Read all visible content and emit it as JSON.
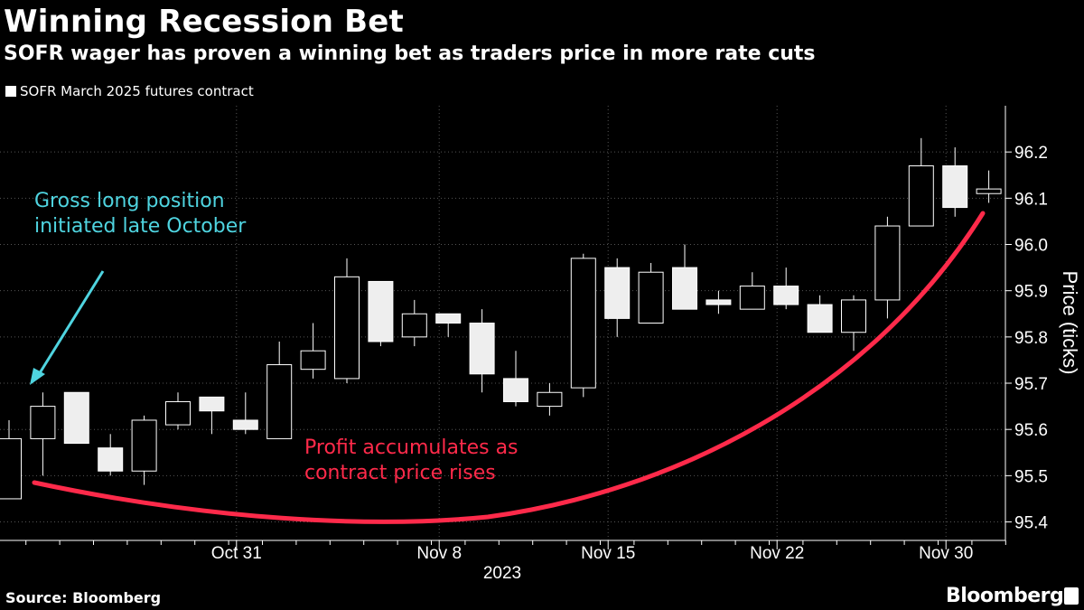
{
  "title": "Winning Recession Bet",
  "subtitle": "SOFR wager has proven a winning bet as traders price in more rate cuts",
  "source": "Source: Bloomberg",
  "brand": "Bloomberg",
  "colors": {
    "background": "#000000",
    "candle": "#ffffff",
    "annotation_start": "#4fd4e0",
    "annotation_profit": "#ff2a4a",
    "grid": "#555555"
  },
  "chart_data": {
    "type": "candlestick",
    "series": [
      {
        "name": "SOFR March 2025 futures contract"
      }
    ],
    "ylabel": "Price (ticks)",
    "xlabel": "2023",
    "ylim": [
      95.36,
      96.3
    ],
    "yticks": [
      95.4,
      95.5,
      95.6,
      95.7,
      95.8,
      95.9,
      96.0,
      96.1,
      96.2
    ],
    "ytick_labels": [
      "95.4",
      "95.5",
      "95.6",
      "95.7",
      "95.8",
      "95.9",
      "96.0",
      "96.1",
      "96.2"
    ],
    "xticks": [
      "Oct 31",
      "Nov 8",
      "Nov 15",
      "Nov 22",
      "Nov 30"
    ],
    "xtick_positions": [
      7,
      13,
      18,
      23,
      28
    ],
    "annotations": [
      {
        "text_lines": [
          "Gross long position",
          "initiated late October"
        ],
        "color": "#4fd4e0"
      },
      {
        "text_lines": [
          "Profit accumulates as",
          "contract price rises"
        ],
        "color": "#ff2a4a"
      }
    ],
    "candles": [
      {
        "open": 95.45,
        "high": 95.62,
        "low": 95.45,
        "close": 95.58
      },
      {
        "open": 95.58,
        "high": 95.68,
        "low": 95.5,
        "close": 95.65
      },
      {
        "open": 95.68,
        "high": 95.68,
        "low": 95.57,
        "close": 95.57
      },
      {
        "open": 95.56,
        "high": 95.59,
        "low": 95.5,
        "close": 95.51
      },
      {
        "open": 95.51,
        "high": 95.63,
        "low": 95.48,
        "close": 95.62
      },
      {
        "open": 95.61,
        "high": 95.68,
        "low": 95.6,
        "close": 95.66
      },
      {
        "open": 95.67,
        "high": 95.67,
        "low": 95.59,
        "close": 95.64
      },
      {
        "open": 95.62,
        "high": 95.68,
        "low": 95.59,
        "close": 95.6
      },
      {
        "open": 95.58,
        "high": 95.79,
        "low": 95.58,
        "close": 95.74
      },
      {
        "open": 95.73,
        "high": 95.83,
        "low": 95.71,
        "close": 95.77
      },
      {
        "open": 95.71,
        "high": 95.97,
        "low": 95.7,
        "close": 95.93
      },
      {
        "open": 95.92,
        "high": 95.92,
        "low": 95.78,
        "close": 95.79
      },
      {
        "open": 95.8,
        "high": 95.88,
        "low": 95.78,
        "close": 95.85
      },
      {
        "open": 95.85,
        "high": 95.85,
        "low": 95.8,
        "close": 95.83
      },
      {
        "open": 95.83,
        "high": 95.86,
        "low": 95.68,
        "close": 95.72
      },
      {
        "open": 95.71,
        "high": 95.77,
        "low": 95.65,
        "close": 95.66
      },
      {
        "open": 95.65,
        "high": 95.7,
        "low": 95.63,
        "close": 95.68
      },
      {
        "open": 95.69,
        "high": 95.98,
        "low": 95.67,
        "close": 95.97
      },
      {
        "open": 95.95,
        "high": 95.97,
        "low": 95.8,
        "close": 95.84
      },
      {
        "open": 95.83,
        "high": 95.96,
        "low": 95.83,
        "close": 95.94
      },
      {
        "open": 95.95,
        "high": 96.0,
        "low": 95.86,
        "close": 95.86
      },
      {
        "open": 95.88,
        "high": 95.9,
        "low": 95.85,
        "close": 95.87
      },
      {
        "open": 95.86,
        "high": 95.94,
        "low": 95.86,
        "close": 95.91
      },
      {
        "open": 95.91,
        "high": 95.95,
        "low": 95.86,
        "close": 95.87
      },
      {
        "open": 95.87,
        "high": 95.89,
        "low": 95.81,
        "close": 95.81
      },
      {
        "open": 95.81,
        "high": 95.89,
        "low": 95.77,
        "close": 95.88
      },
      {
        "open": 95.88,
        "high": 96.06,
        "low": 95.84,
        "close": 96.04
      },
      {
        "open": 96.04,
        "high": 96.23,
        "low": 96.04,
        "close": 96.17
      },
      {
        "open": 96.17,
        "high": 96.21,
        "low": 96.06,
        "close": 96.08
      },
      {
        "open": 96.11,
        "high": 96.16,
        "low": 96.09,
        "close": 96.12
      }
    ]
  }
}
